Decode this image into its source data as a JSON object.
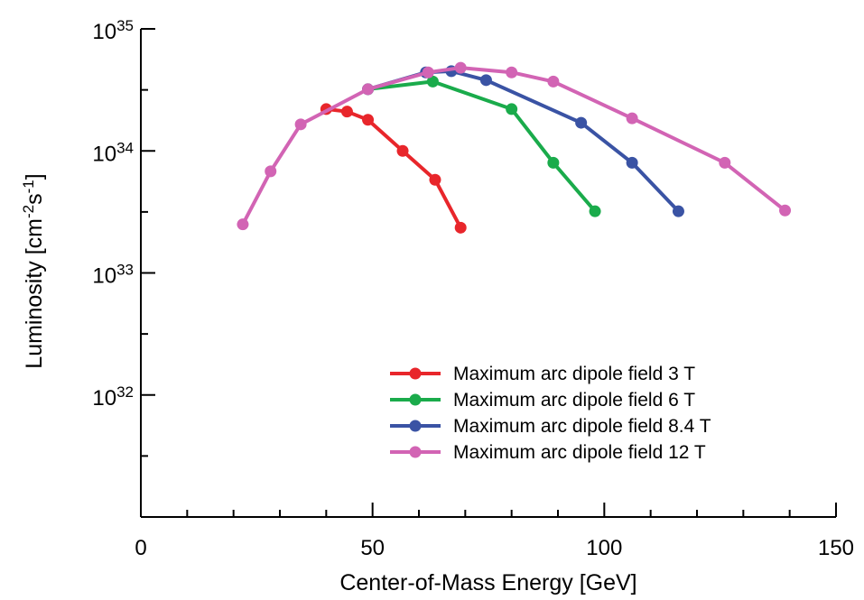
{
  "chart_data": {
    "type": "line",
    "xlabel": "Center-of-Mass Energy [GeV]",
    "ylabel": "Luminosity [cm",
    "ylabel_unit_tokens": [
      "-2",
      "s",
      "-1",
      "]"
    ],
    "xlim": [
      0,
      150
    ],
    "ylim": [
      1e+31,
      1e+35
    ],
    "y_scale": "log",
    "x_ticks": [
      0,
      50,
      100,
      150
    ],
    "x_tick_labels": [
      "0",
      "50",
      "100",
      "150"
    ],
    "y_ticks": [
      1e+32,
      1e+33,
      1e+34,
      1e+35
    ],
    "y_tick_base": "10",
    "y_tick_exponents": [
      "32",
      "33",
      "34",
      "35"
    ],
    "grid": false,
    "legend_position": "bottom-right",
    "series": [
      {
        "name": "Maximum arc dipole field 3 T",
        "color": "#e8262b",
        "x": [
          40,
          44.5,
          49,
          56.5,
          63.5,
          69
        ],
        "y": [
          2.2e+34,
          2.1e+34,
          1.8e+34,
          1e+34,
          5.8e+33,
          2.35e+33
        ]
      },
      {
        "name": "Maximum arc dipole field 6 T",
        "color": "#1aab4b",
        "x": [
          49,
          63,
          80,
          89,
          98
        ],
        "y": [
          3.2e+34,
          3.7e+34,
          2.2e+34,
          8e+33,
          3.2e+33
        ]
      },
      {
        "name": "Maximum arc dipole field 8.4 T",
        "color": "#3a53a4",
        "x": [
          49,
          61.5,
          67,
          74.5,
          95,
          106,
          116
        ],
        "y": [
          3.2e+34,
          4.4e+34,
          4.5e+34,
          3.8e+34,
          1.7e+34,
          8e+33,
          3.2e+33
        ]
      },
      {
        "name": "Maximum arc dipole field 12 T",
        "color": "#d264b4",
        "x": [
          22,
          28,
          34.5,
          49,
          62,
          69,
          80,
          89,
          106,
          126,
          139
        ],
        "y": [
          2.5e+33,
          6.8e+33,
          1.65e+34,
          3.2e+34,
          4.4e+34,
          4.8e+34,
          4.4e+34,
          3.7e+34,
          1.85e+34,
          8e+33,
          3.25e+33
        ]
      }
    ]
  }
}
